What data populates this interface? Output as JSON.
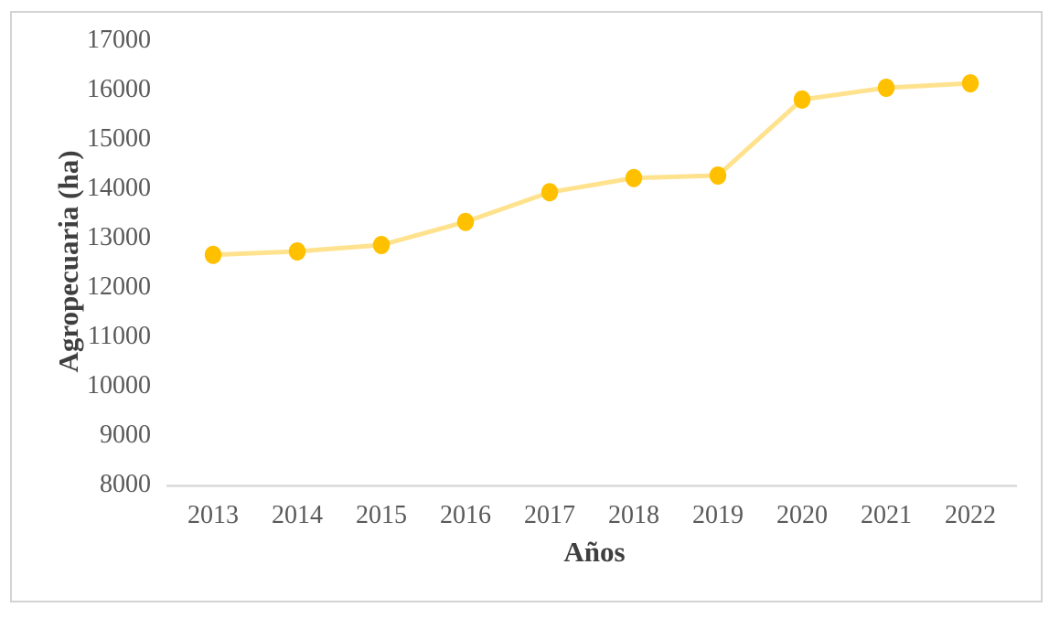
{
  "chart_data": {
    "type": "line",
    "title": "",
    "xlabel": "Años",
    "ylabel": "Agropecuaria (ha)",
    "categories": [
      "2013",
      "2014",
      "2015",
      "2016",
      "2017",
      "2018",
      "2019",
      "2020",
      "2021",
      "2022"
    ],
    "values": [
      12650,
      12720,
      12850,
      13320,
      13920,
      14210,
      14260,
      15800,
      16040,
      16130
    ],
    "y_ticks": [
      8000,
      9000,
      10000,
      11000,
      12000,
      13000,
      14000,
      15000,
      16000,
      17000
    ],
    "ylim": [
      8000,
      17000
    ],
    "grid": false,
    "legend": false,
    "layout_hints": {
      "axis_line": "bottom-only",
      "marker_style": "filled-circle",
      "legend_position": "none"
    },
    "colors": {
      "line": "#FFE28E",
      "marker": "#FFC000",
      "axis_line": "#D9D9D9",
      "tick_label": "#595959",
      "axis_title": "#3F3F3F",
      "frame_border": "#D3D3D3",
      "background": "#FFFFFF"
    }
  }
}
